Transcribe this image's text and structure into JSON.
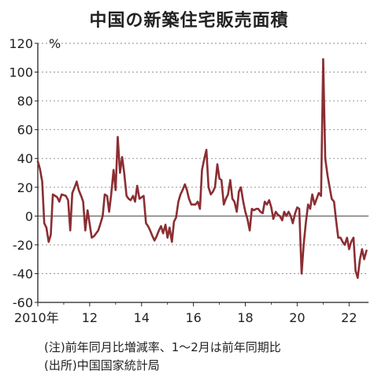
{
  "chart_data": {
    "type": "line",
    "title": "中国の新築住宅販売面積",
    "unit_label": "%",
    "ylim": [
      -60,
      120
    ],
    "y_ticks": [
      120,
      100,
      80,
      60,
      40,
      20,
      0,
      -20,
      -40,
      -60
    ],
    "x_ticks": [
      {
        "x": 2010,
        "label": "2010年"
      },
      {
        "x": 2012,
        "label": "12"
      },
      {
        "x": 2014,
        "label": "14"
      },
      {
        "x": 2016,
        "label": "16"
      },
      {
        "x": 2018,
        "label": "18"
      },
      {
        "x": 2020,
        "label": "20"
      },
      {
        "x": 2022,
        "label": "22"
      }
    ],
    "xlim": [
      2010,
      2022.75
    ],
    "grid": "horizontal dashed",
    "line_color": "#8B2E33",
    "series": [
      {
        "points": [
          [
            2010.0,
            38
          ],
          [
            2010.08,
            33
          ],
          [
            2010.17,
            24
          ],
          [
            2010.25,
            -5
          ],
          [
            2010.33,
            -8
          ],
          [
            2010.42,
            -18
          ],
          [
            2010.5,
            -13
          ],
          [
            2010.58,
            15
          ],
          [
            2010.67,
            14
          ],
          [
            2010.75,
            13
          ],
          [
            2010.83,
            10
          ],
          [
            2010.92,
            15
          ],
          [
            2011.08,
            14
          ],
          [
            2011.17,
            11
          ],
          [
            2011.25,
            -10
          ],
          [
            2011.33,
            16
          ],
          [
            2011.42,
            20
          ],
          [
            2011.5,
            24
          ],
          [
            2011.58,
            18
          ],
          [
            2011.67,
            14
          ],
          [
            2011.75,
            10
          ],
          [
            2011.83,
            -10
          ],
          [
            2011.92,
            4
          ],
          [
            2012.08,
            -15
          ],
          [
            2012.17,
            -14
          ],
          [
            2012.25,
            -12
          ],
          [
            2012.33,
            -10
          ],
          [
            2012.42,
            -5
          ],
          [
            2012.5,
            0
          ],
          [
            2012.58,
            15
          ],
          [
            2012.67,
            14
          ],
          [
            2012.75,
            3
          ],
          [
            2012.83,
            15
          ],
          [
            2012.92,
            32
          ],
          [
            2013.0,
            18
          ],
          [
            2013.08,
            55
          ],
          [
            2013.17,
            30
          ],
          [
            2013.25,
            41
          ],
          [
            2013.33,
            30
          ],
          [
            2013.42,
            14
          ],
          [
            2013.5,
            12
          ],
          [
            2013.58,
            11
          ],
          [
            2013.67,
            14
          ],
          [
            2013.75,
            10
          ],
          [
            2013.83,
            21
          ],
          [
            2013.92,
            12
          ],
          [
            2014.08,
            14
          ],
          [
            2014.17,
            -5
          ],
          [
            2014.25,
            -7
          ],
          [
            2014.33,
            -10
          ],
          [
            2014.42,
            -14
          ],
          [
            2014.5,
            -17
          ],
          [
            2014.58,
            -14
          ],
          [
            2014.67,
            -10
          ],
          [
            2014.75,
            -7
          ],
          [
            2014.83,
            -12
          ],
          [
            2014.92,
            -6
          ],
          [
            2015.0,
            -15
          ],
          [
            2015.08,
            -8
          ],
          [
            2015.17,
            -18
          ],
          [
            2015.25,
            -4
          ],
          [
            2015.33,
            -1
          ],
          [
            2015.42,
            10
          ],
          [
            2015.5,
            15
          ],
          [
            2015.58,
            18
          ],
          [
            2015.67,
            22
          ],
          [
            2015.75,
            18
          ],
          [
            2015.83,
            12
          ],
          [
            2015.92,
            8
          ],
          [
            2016.08,
            8
          ],
          [
            2016.17,
            10
          ],
          [
            2016.25,
            5
          ],
          [
            2016.33,
            32
          ],
          [
            2016.42,
            40
          ],
          [
            2016.5,
            46
          ],
          [
            2016.58,
            20
          ],
          [
            2016.67,
            15
          ],
          [
            2016.75,
            17
          ],
          [
            2016.83,
            20
          ],
          [
            2016.92,
            36
          ],
          [
            2017.0,
            26
          ],
          [
            2017.08,
            25
          ],
          [
            2017.17,
            8
          ],
          [
            2017.25,
            12
          ],
          [
            2017.33,
            15
          ],
          [
            2017.42,
            25
          ],
          [
            2017.5,
            12
          ],
          [
            2017.58,
            10
          ],
          [
            2017.67,
            3
          ],
          [
            2017.75,
            17
          ],
          [
            2017.83,
            20
          ],
          [
            2017.92,
            10
          ],
          [
            2018.0,
            3
          ],
          [
            2018.08,
            -2
          ],
          [
            2018.17,
            -10
          ],
          [
            2018.25,
            5
          ],
          [
            2018.33,
            4
          ],
          [
            2018.42,
            5
          ],
          [
            2018.5,
            5
          ],
          [
            2018.58,
            3
          ],
          [
            2018.67,
            2
          ],
          [
            2018.75,
            10
          ],
          [
            2018.83,
            8
          ],
          [
            2018.92,
            11
          ],
          [
            2019.0,
            6
          ],
          [
            2019.08,
            -2
          ],
          [
            2019.17,
            3
          ],
          [
            2019.25,
            1
          ],
          [
            2019.33,
            0
          ],
          [
            2019.42,
            -3
          ],
          [
            2019.5,
            3
          ],
          [
            2019.58,
            0
          ],
          [
            2019.67,
            3
          ],
          [
            2019.75,
            0
          ],
          [
            2019.83,
            -5
          ],
          [
            2019.92,
            2
          ],
          [
            2020.0,
            6
          ],
          [
            2020.08,
            5
          ],
          [
            2020.17,
            -40
          ],
          [
            2020.25,
            -20
          ],
          [
            2020.33,
            -5
          ],
          [
            2020.42,
            8
          ],
          [
            2020.5,
            5
          ],
          [
            2020.58,
            15
          ],
          [
            2020.67,
            8
          ],
          [
            2020.75,
            12
          ],
          [
            2020.83,
            16
          ],
          [
            2020.92,
            14
          ],
          [
            2021.0,
            109
          ],
          [
            2021.08,
            40
          ],
          [
            2021.17,
            28
          ],
          [
            2021.25,
            20
          ],
          [
            2021.33,
            12
          ],
          [
            2021.42,
            10
          ],
          [
            2021.5,
            -3
          ],
          [
            2021.58,
            -15
          ],
          [
            2021.67,
            -15
          ],
          [
            2021.75,
            -18
          ],
          [
            2021.83,
            -20
          ],
          [
            2021.92,
            -15
          ],
          [
            2022.0,
            -23
          ],
          [
            2022.08,
            -18
          ],
          [
            2022.17,
            -15
          ],
          [
            2022.25,
            -38
          ],
          [
            2022.33,
            -43
          ],
          [
            2022.42,
            -30
          ],
          [
            2022.5,
            -23
          ],
          [
            2022.58,
            -30
          ],
          [
            2022.67,
            -24
          ]
        ]
      }
    ]
  },
  "notes": {
    "note": "(注)前年同月比増減率、1〜2月は前年同期比",
    "source": "(出所)中国国家統計局"
  }
}
